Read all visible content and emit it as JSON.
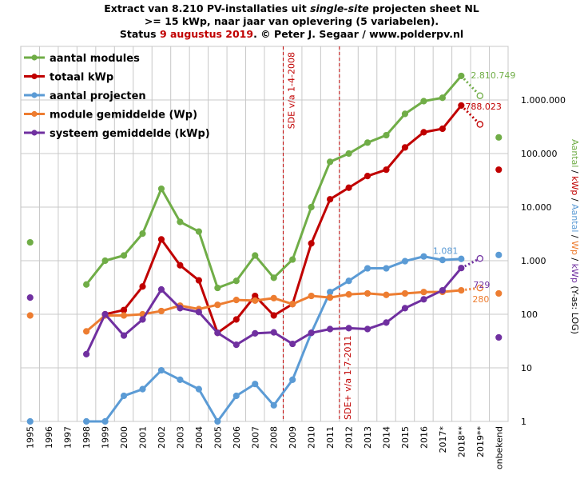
{
  "title": {
    "line1_a": "Extract van 8.210 PV-installaties uit ",
    "line1_b": "single-site",
    "line1_c": " projecten sheet NL",
    "line2": ">= 15 kWp, naar jaar van oplevering (5 variabelen).",
    "line3_a": "Status ",
    "line3_b": "9 augustus 2019",
    "line3_c": ". © Peter J. Segaar / www.polderpv.nl"
  },
  "colors": {
    "green": "#70ad47",
    "red": "#c00000",
    "blue": "#5b9bd5",
    "orange": "#ed7d31",
    "purple": "#7030a0",
    "grid": "#c8c8c8",
    "marker_line": "#c00000"
  },
  "right_axis_label": [
    {
      "text": "Aantal",
      "color": "#70ad47"
    },
    {
      "text": " / ",
      "color": "#000000"
    },
    {
      "text": "kWp",
      "color": "#c00000"
    },
    {
      "text": " / ",
      "color": "#000000"
    },
    {
      "text": "Aantal",
      "color": "#5b9bd5"
    },
    {
      "text": " / ",
      "color": "#000000"
    },
    {
      "text": "Wp",
      "color": "#ed7d31"
    },
    {
      "text": " / ",
      "color": "#000000"
    },
    {
      "text": "kWp",
      "color": "#7030a0"
    },
    {
      "text": " (Y-as: LOG)",
      "color": "#000000"
    }
  ],
  "vertical_markers": [
    {
      "label": "SDE v/a 1-4-2008",
      "after_category": "2008"
    },
    {
      "label": "SDE+ v/a 1-7-2011",
      "after_category": "2011"
    }
  ],
  "chart_data": {
    "type": "line",
    "yscale": "log",
    "ylim": [
      1,
      10000000
    ],
    "grid": true,
    "legend_position": "top-left",
    "ytick_labels": [
      "1",
      "10",
      "100",
      "1.000",
      "10.000",
      "100.000",
      "1.000.000"
    ],
    "categories": [
      "1995",
      "1996",
      "1997",
      "1998",
      "1999",
      "2000",
      "2001",
      "2002",
      "2003",
      "2004",
      "2005",
      "2006",
      "2007",
      "2008",
      "2009",
      "2010",
      "2011",
      "2012",
      "2013",
      "2014",
      "2015",
      "2016",
      "2017*",
      "2018**",
      "2019**",
      "onbekend"
    ],
    "series": [
      {
        "name": "aantal modules",
        "color": "#70ad47",
        "values": [
          2200,
          null,
          null,
          360,
          1000,
          1250,
          3200,
          22000,
          5300,
          3500,
          310,
          420,
          1250,
          480,
          1050,
          10000,
          70000,
          100000,
          160000,
          220000,
          550000,
          950000,
          1100000,
          2810749,
          1200000,
          200000
        ],
        "label": "2.810.749"
      },
      {
        "name": "totaal kWp",
        "color": "#c00000",
        "values": [
          null,
          null,
          null,
          null,
          100,
          120,
          330,
          2500,
          820,
          430,
          45,
          80,
          220,
          95,
          155,
          2100,
          14000,
          23000,
          38000,
          50000,
          130000,
          250000,
          290000,
          788023,
          350000,
          50000
        ],
        "label": "788.023"
      },
      {
        "name": "aantal projecten",
        "color": "#5b9bd5",
        "values": [
          1,
          null,
          null,
          1,
          1,
          3,
          4,
          9,
          6,
          4,
          1,
          3,
          5,
          2,
          6,
          45,
          260,
          420,
          720,
          720,
          980,
          1200,
          1030,
          1081,
          null,
          1280
        ],
        "label": "1.081"
      },
      {
        "name": "module gemiddelde (Wp)",
        "color": "#ed7d31",
        "values": [
          95,
          null,
          null,
          48,
          95,
          95,
          100,
          115,
          145,
          125,
          150,
          185,
          180,
          200,
          155,
          220,
          205,
          235,
          245,
          230,
          245,
          260,
          262,
          280,
          310,
          245
        ],
        "label": "280"
      },
      {
        "name": "systeem gemiddelde (kWp)",
        "color": "#7030a0",
        "values": [
          205,
          null,
          null,
          18,
          100,
          40,
          80,
          290,
          130,
          110,
          45,
          27,
          44,
          46,
          28,
          45,
          53,
          55,
          53,
          70,
          130,
          190,
          280,
          729,
          1100,
          37
        ],
        "label": "729"
      }
    ]
  }
}
